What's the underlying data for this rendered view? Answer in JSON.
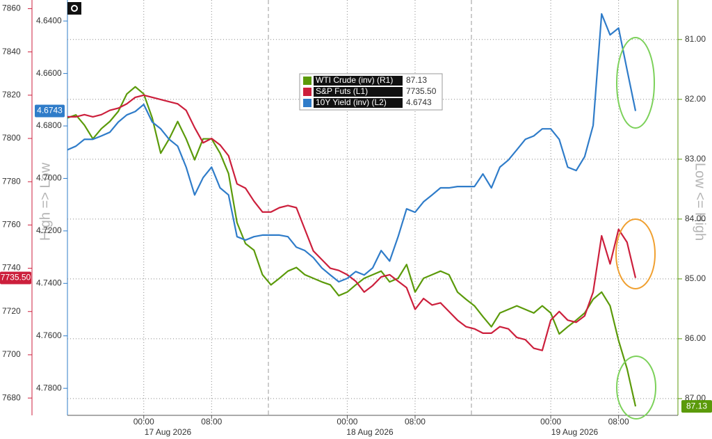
{
  "chart_data": {
    "type": "line",
    "left_axis_label": "High => Low",
    "right_axis_label": "Low <= High",
    "date_labels": [
      "17 Aug 2026",
      "18 Aug 2026",
      "19 Aug 2026"
    ],
    "x": [
      "2026-08-16T15:00",
      "2026-08-16T16:00",
      "2026-08-16T17:00",
      "2026-08-16T18:00",
      "2026-08-16T19:00",
      "2026-08-16T20:00",
      "2026-08-16T21:00",
      "2026-08-16T22:00",
      "2026-08-16T23:00",
      "2026-08-17T00:00",
      "2026-08-17T01:00",
      "2026-08-17T02:00",
      "2026-08-17T03:00",
      "2026-08-17T04:00",
      "2026-08-17T05:00",
      "2026-08-17T06:00",
      "2026-08-17T07:00",
      "2026-08-17T08:00",
      "2026-08-17T09:00",
      "2026-08-17T10:00",
      "2026-08-17T11:00",
      "2026-08-17T12:00",
      "2026-08-17T13:00",
      "2026-08-17T14:00",
      "2026-08-17T15:00",
      "2026-08-17T16:00",
      "2026-08-17T17:00",
      "2026-08-17T18:00",
      "2026-08-17T19:00",
      "2026-08-17T20:00",
      "2026-08-17T21:00",
      "2026-08-17T22:00",
      "2026-08-17T23:00",
      "2026-08-18T00:00",
      "2026-08-18T01:00",
      "2026-08-18T02:00",
      "2026-08-18T03:00",
      "2026-08-18T04:00",
      "2026-08-18T05:00",
      "2026-08-18T06:00",
      "2026-08-18T07:00",
      "2026-08-18T08:00",
      "2026-08-18T09:00",
      "2026-08-18T10:00",
      "2026-08-18T11:00",
      "2026-08-18T12:00",
      "2026-08-18T13:00",
      "2026-08-18T14:00",
      "2026-08-18T15:00",
      "2026-08-18T16:00",
      "2026-08-18T17:00",
      "2026-08-18T18:00",
      "2026-08-18T19:00",
      "2026-08-18T20:00",
      "2026-08-18T21:00",
      "2026-08-18T22:00",
      "2026-08-18T23:00",
      "2026-08-19T00:00",
      "2026-08-19T01:00",
      "2026-08-19T02:00",
      "2026-08-19T03:00",
      "2026-08-19T04:00",
      "2026-08-19T05:00",
      "2026-08-19T06:00",
      "2026-08-19T07:00",
      "2026-08-19T08:00",
      "2026-08-19T09:00",
      "2026-08-19T10:00"
    ],
    "xlim": [
      "2026-08-16T15:00",
      "2026-08-19T15:00"
    ],
    "xticks": [
      {
        "value": "2026-08-17T00:00",
        "label": "00:00"
      },
      {
        "value": "2026-08-17T08:00",
        "label": "08:00"
      },
      {
        "value": "2026-08-18T00:00",
        "label": "00:00"
      },
      {
        "value": "2026-08-18T08:00",
        "label": "08:00"
      },
      {
        "value": "2026-08-19T00:00",
        "label": "00:00"
      },
      {
        "value": "2026-08-19T08:00",
        "label": "08:00"
      }
    ],
    "ylim": [
      7672,
      7864
    ],
    "yticks": [
      7680,
      7700,
      7720,
      7740,
      7760,
      7780,
      7800,
      7820,
      7840,
      7860
    ],
    "y2lim": [
      4.7903,
      4.632
    ],
    "y2ticks": [
      {
        "value": 4.64,
        "label": "4.6400"
      },
      {
        "value": 4.66,
        "label": "4.6600"
      },
      {
        "value": 4.68,
        "label": "4.6800"
      },
      {
        "value": 4.7,
        "label": "4.7000"
      },
      {
        "value": 4.72,
        "label": "4.7200"
      },
      {
        "value": 4.74,
        "label": "4.7400"
      },
      {
        "value": 4.76,
        "label": "4.7600"
      },
      {
        "value": 4.78,
        "label": "4.7800"
      }
    ],
    "y3lim": [
      87.28,
      80.34
    ],
    "y3ticks": [
      {
        "value": 81,
        "label": "81.00"
      },
      {
        "value": 82,
        "label": "82.00"
      },
      {
        "value": 83,
        "label": "83.00"
      },
      {
        "value": 84,
        "label": "84.00"
      },
      {
        "value": 85,
        "label": "85.00"
      },
      {
        "value": 86,
        "label": "86.00"
      },
      {
        "value": 87,
        "label": "87.00"
      }
    ],
    "grid": true,
    "series": [
      {
        "name": "WTI Crude (inv) (R1)",
        "color": "#5b9a0a",
        "axis": "y3",
        "last_label": "87.13",
        "values": [
          82.31,
          82.26,
          82.43,
          82.66,
          82.49,
          82.37,
          82.2,
          81.91,
          81.79,
          81.91,
          82.31,
          82.9,
          82.66,
          82.37,
          82.66,
          83.01,
          82.66,
          82.66,
          82.9,
          83.24,
          84.06,
          84.41,
          84.52,
          84.93,
          85.1,
          84.99,
          84.87,
          84.81,
          84.93,
          84.99,
          85.05,
          85.1,
          85.28,
          85.22,
          85.1,
          84.99,
          84.93,
          84.87,
          85.05,
          84.99,
          84.76,
          85.22,
          84.99,
          84.93,
          84.87,
          84.93,
          85.22,
          85.34,
          85.45,
          85.63,
          85.8,
          85.57,
          85.51,
          85.45,
          85.51,
          85.57,
          85.45,
          85.57,
          85.92,
          85.8,
          85.69,
          85.57,
          85.34,
          85.22,
          85.45,
          86.03,
          86.5,
          87.13
        ]
      },
      {
        "name": "S&P Futs (L1)",
        "color": "#cc1f3c",
        "axis": "y",
        "last_label": "7735.50",
        "values": [
          7810,
          7810,
          7811,
          7810,
          7811,
          7813,
          7814,
          7816,
          7819,
          7820,
          7819,
          7818,
          7817,
          7816,
          7813,
          7805,
          7798,
          7800,
          7797,
          7792,
          7779,
          7777,
          7771,
          7766,
          7766,
          7768,
          7769,
          7768,
          7758,
          7748,
          7744,
          7740,
          7739,
          7737,
          7734,
          7729,
          7732,
          7736,
          7737,
          7734,
          7731,
          7721,
          7726,
          7723,
          7724,
          7720,
          7716,
          7713,
          7712,
          7710,
          7710,
          7713,
          7712,
          7708,
          7707,
          7703,
          7702,
          7716,
          7720,
          7716,
          7715,
          7718,
          7729,
          7755,
          7742,
          7758,
          7752,
          7735.5
        ]
      },
      {
        "name": "10Y Yield (inv) (L2)",
        "color": "#2f7cc9",
        "axis": "y2",
        "last_label": "4.6743",
        "values": [
          4.6891,
          4.6877,
          4.6851,
          4.6851,
          4.6838,
          4.6824,
          4.6785,
          4.6758,
          4.6745,
          4.6718,
          4.6785,
          4.6811,
          4.6851,
          4.6877,
          4.6957,
          4.7063,
          4.6997,
          4.6957,
          4.7036,
          4.7063,
          4.7222,
          4.7235,
          4.7222,
          4.7216,
          4.7216,
          4.7216,
          4.7222,
          4.7262,
          4.7275,
          4.7302,
          4.7341,
          4.7368,
          4.7394,
          4.7381,
          4.7355,
          4.7368,
          4.7341,
          4.7275,
          4.7315,
          4.7222,
          4.7116,
          4.7129,
          4.7089,
          4.7063,
          4.7036,
          4.7036,
          4.7031,
          4.7031,
          4.7031,
          4.6983,
          4.7036,
          4.6957,
          4.693,
          4.6891,
          4.6851,
          4.6838,
          4.6811,
          4.6811,
          4.6851,
          4.6957,
          4.697,
          4.6917,
          4.6798,
          4.6373,
          4.6453,
          4.6427,
          4.6586,
          4.6743
        ]
      }
    ]
  }
}
